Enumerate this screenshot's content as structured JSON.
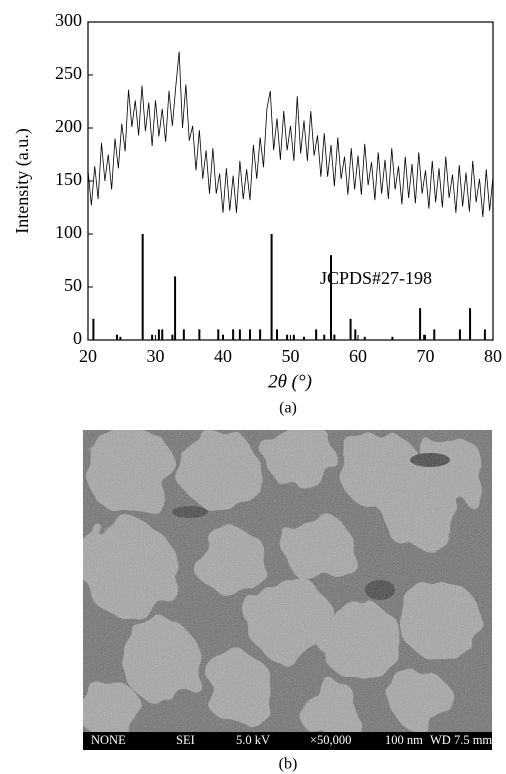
{
  "chart_data": {
    "type": "line",
    "xlabel": "2θ (°)",
    "ylabel": "Intensity (a.u.)",
    "annotation": "JCPDS#27-198",
    "xlim": [
      20,
      80
    ],
    "xticks": [
      20,
      30,
      40,
      50,
      60,
      70,
      80
    ],
    "ylim": [
      0,
      300
    ],
    "yticks": [
      0,
      50,
      100,
      150,
      200,
      250,
      300
    ],
    "series": [
      {
        "type": "line",
        "color": "#000000",
        "x": [
          20,
          20.5,
          21,
          21.5,
          22,
          22.5,
          23,
          23.5,
          24,
          24.5,
          25,
          25.5,
          26,
          26.5,
          27,
          27.5,
          28,
          28.5,
          29,
          29.5,
          30,
          30.5,
          31,
          31.5,
          32,
          32.5,
          33,
          33.5,
          34,
          34.5,
          35,
          35.5,
          36,
          36.5,
          37,
          37.5,
          38,
          38.5,
          39,
          39.5,
          40,
          40.5,
          41,
          41.5,
          42,
          42.5,
          43,
          43.5,
          44,
          44.5,
          45,
          45.5,
          46,
          46.5,
          47,
          47.5,
          48,
          48.5,
          49,
          49.5,
          50,
          50.5,
          51,
          51.5,
          52,
          52.5,
          53,
          53.5,
          54,
          54.5,
          55,
          55.5,
          56,
          56.5,
          57,
          57.5,
          58,
          58.5,
          59,
          59.5,
          60,
          60.5,
          61,
          61.5,
          62,
          62.5,
          63,
          63.5,
          64,
          64.5,
          65,
          65.5,
          66,
          66.5,
          67,
          67.5,
          68,
          68.5,
          69,
          69.5,
          70,
          70.5,
          71,
          71.5,
          72,
          72.5,
          73,
          73.5,
          74,
          74.5,
          75,
          75.5,
          76,
          76.5,
          77,
          77.5,
          78,
          78.5,
          79,
          79.5,
          80
        ],
        "values": [
          160,
          127,
          164,
          133,
          186,
          150,
          175,
          142,
          190,
          162,
          204,
          178,
          236,
          201,
          226,
          193,
          240,
          197,
          224,
          183,
          226,
          192,
          218,
          187,
          235,
          202,
          239,
          272,
          200,
          241,
          188,
          202,
          160,
          198,
          152,
          179,
          138,
          181,
          138,
          157,
          120,
          162,
          122,
          155,
          120,
          169,
          133,
          161,
          132,
          184,
          152,
          191,
          163,
          218,
          235,
          179,
          209,
          170,
          216,
          179,
          202,
          169,
          230,
          176,
          207,
          169,
          216,
          174,
          193,
          154,
          195,
          154,
          184,
          145,
          191,
          152,
          173,
          137,
          181,
          142,
          174,
          137,
          185,
          146,
          168,
          132,
          177,
          138,
          170,
          133,
          181,
          142,
          164,
          128,
          173,
          134,
          166,
          129,
          177,
          138,
          160,
          124,
          169,
          130,
          162,
          125,
          173,
          134,
          156,
          120,
          165,
          126,
          158,
          121,
          169,
          130,
          152,
          116,
          161,
          122,
          154
        ]
      },
      {
        "type": "stem",
        "color": "#000000",
        "x": [
          20.8,
          24.3,
          24.8,
          28.1,
          29.5,
          30.5,
          31,
          32.5,
          32.9,
          34.2,
          36.5,
          39.3,
          40,
          41.5,
          42.5,
          44,
          45.5,
          47.2,
          48,
          49.5,
          50.5,
          52,
          53.8,
          55,
          56,
          56.5,
          58.9,
          59.6,
          61,
          65.1,
          69.2,
          69.8,
          71.3,
          75.1,
          76.6,
          78.8
        ],
        "values": [
          20,
          5,
          3,
          100,
          5,
          10,
          10,
          5,
          60,
          10,
          10,
          10,
          5,
          10,
          10,
          10,
          10,
          100,
          10,
          5,
          5,
          3,
          10,
          5,
          80,
          5,
          20,
          10,
          3,
          3,
          30,
          5,
          10,
          10,
          30,
          10
        ]
      }
    ]
  },
  "figure": {
    "caption_a": "(a)",
    "caption_b": "(b)",
    "sem_info": [
      "NONE",
      "SEI",
      "5.0 kV",
      "×50,000",
      "100 nm",
      "WD 7.5 mm"
    ]
  }
}
